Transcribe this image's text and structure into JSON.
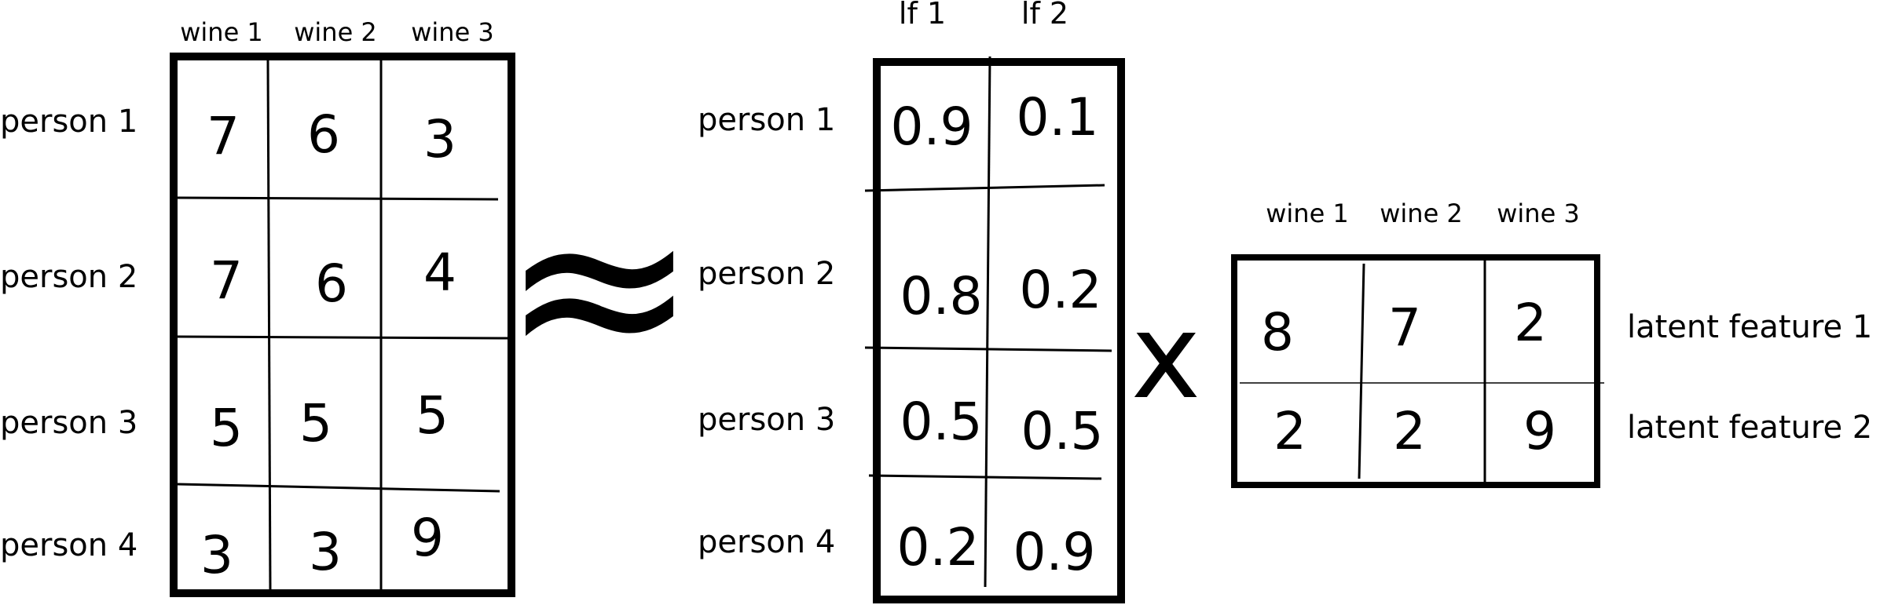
{
  "ratings": {
    "col_headers": [
      "wine 1",
      "wine 2",
      "wine 3"
    ],
    "row_headers": [
      "person 1",
      "person 2",
      "person 3",
      "person 4"
    ],
    "values": [
      [
        "7",
        "6",
        "3"
      ],
      [
        "7",
        "6",
        "4"
      ],
      [
        "5",
        "5",
        "5"
      ],
      [
        "3",
        "3",
        "9"
      ]
    ]
  },
  "approx_symbol": "≈",
  "person_factors": {
    "col_headers": [
      "lf 1",
      "lf 2"
    ],
    "row_headers": [
      "person 1",
      "person 2",
      "person 3",
      "person 4"
    ],
    "values": [
      [
        "0.9",
        "0.1"
      ],
      [
        "0.8",
        "0.2"
      ],
      [
        "0.5",
        "0.5"
      ],
      [
        "0.2",
        "0.9"
      ]
    ]
  },
  "times_symbol": "x",
  "wine_factors": {
    "col_headers": [
      "wine 1",
      "wine 2",
      "wine 3"
    ],
    "row_headers": [
      "latent feature 1",
      "latent feature 2"
    ],
    "values": [
      [
        "8",
        "7",
        "2"
      ],
      [
        "2",
        "2",
        "9"
      ]
    ]
  }
}
